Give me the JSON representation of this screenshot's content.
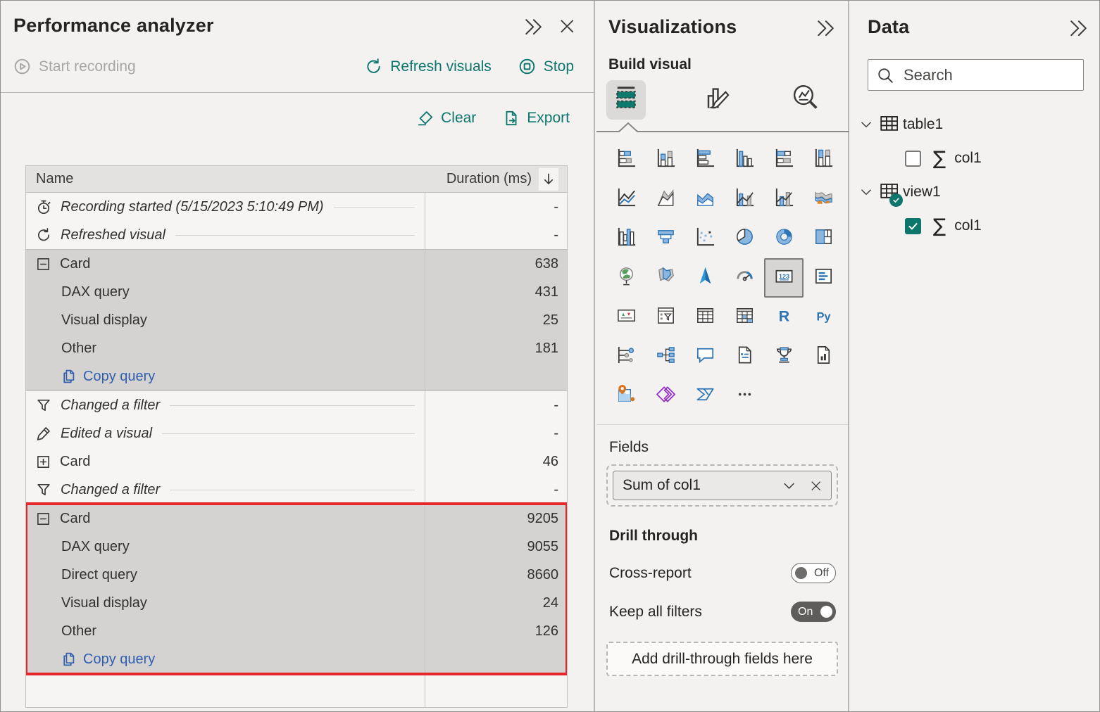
{
  "colors": {
    "accent_teal": "#0C766C",
    "link_blue": "#2F5FAE",
    "highlight_red": "#E8252B",
    "icon_blue": "#2E75B6",
    "selected_block_gray": "#D4D3D1"
  },
  "performance_analyzer": {
    "title": "Performance analyzer",
    "start_recording_label": "Start recording",
    "refresh_visuals_label": "Refresh visuals",
    "stop_label": "Stop",
    "clear_label": "Clear",
    "export_label": "Export",
    "copy_query_label": "Copy query",
    "columns": {
      "name": "Name",
      "duration": "Duration (ms)"
    },
    "rows": [
      {
        "kind": "event",
        "icon": "stopwatch",
        "label": "Recording started (5/15/2023 5:10:49 PM)",
        "duration": "-"
      },
      {
        "kind": "event",
        "icon": "refresh",
        "label": "Refreshed visual",
        "duration": "-"
      },
      {
        "kind": "group",
        "expanded": true,
        "highlighted": false,
        "label": "Card",
        "duration": "638",
        "children": [
          {
            "label": "DAX query",
            "duration": "431"
          },
          {
            "label": "Visual display",
            "duration": "25"
          },
          {
            "label": "Other",
            "duration": "181"
          }
        ],
        "copy_query_link": true
      },
      {
        "kind": "event",
        "icon": "filter",
        "label": "Changed a filter",
        "duration": "-"
      },
      {
        "kind": "event",
        "icon": "pencil",
        "label": "Edited a visual",
        "duration": "-"
      },
      {
        "kind": "group",
        "expanded": false,
        "highlighted": false,
        "label": "Card",
        "duration": "46"
      },
      {
        "kind": "event",
        "icon": "filter",
        "label": "Changed a filter",
        "duration": "-"
      },
      {
        "kind": "group",
        "expanded": true,
        "highlighted": true,
        "label": "Card",
        "duration": "9205",
        "children": [
          {
            "label": "DAX query",
            "duration": "9055"
          },
          {
            "label": "Direct query",
            "duration": "8660"
          },
          {
            "label": "Visual display",
            "duration": "24"
          },
          {
            "label": "Other",
            "duration": "126"
          }
        ],
        "copy_query_link": true
      }
    ]
  },
  "visualizations": {
    "title": "Visualizations",
    "build_visual_label": "Build visual",
    "selected_tab": "build-visual",
    "tabs": [
      "build-visual",
      "format-visual",
      "analytics"
    ],
    "selected_visual": "card",
    "gallery": [
      "stacked-bar-chart",
      "stacked-column-chart",
      "clustered-bar-chart",
      "clustered-column-chart",
      "hundred-percent-stacked-bar-chart",
      "hundred-percent-stacked-column-chart",
      "line-chart",
      "area-chart",
      "stacked-area-chart",
      "line-and-stacked-column-chart",
      "line-and-clustered-column-chart",
      "ribbon-chart",
      "waterfall-chart",
      "funnel-chart",
      "scatter-chart",
      "pie-chart",
      "donut-chart",
      "treemap",
      "map",
      "filled-map",
      "azure-map",
      "gauge",
      "card",
      "multi-row-card",
      "kpi",
      "slicer",
      "table",
      "matrix",
      "r-script-visual",
      "python-visual",
      "key-influencers",
      "decomposition-tree",
      "qa-visual",
      "smart-narrative",
      "metrics",
      "paginated-report",
      "arcgis-map",
      "power-apps",
      "power-automate",
      "get-more-visuals"
    ],
    "fields_label": "Fields",
    "field_well_value": "Sum of col1",
    "drill_through": {
      "heading": "Drill through",
      "cross_report_label": "Cross-report",
      "cross_report_state": "Off",
      "keep_all_filters_label": "Keep all filters",
      "keep_all_filters_state": "On",
      "add_fields_label": "Add drill-through fields here"
    }
  },
  "data_pane": {
    "title": "Data",
    "search_placeholder": "Search",
    "tree": [
      {
        "label": "table1",
        "expanded": true,
        "checked_badge": false,
        "fields": [
          {
            "label": "col1",
            "checked": false,
            "aggregate": true
          }
        ]
      },
      {
        "label": "view1",
        "expanded": true,
        "checked_badge": true,
        "fields": [
          {
            "label": "col1",
            "checked": true,
            "aggregate": true
          }
        ]
      }
    ]
  }
}
